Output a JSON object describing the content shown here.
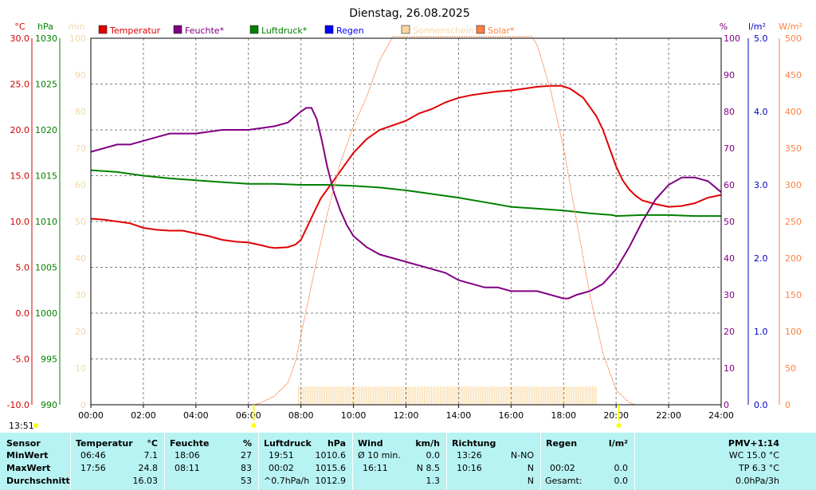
{
  "chart_data": {
    "type": "line",
    "title": "Dienstag, 26.08.2025",
    "x_ticks": [
      "00:00",
      "02:00",
      "04:00",
      "06:00",
      "08:00",
      "10:00",
      "12:00",
      "14:00",
      "16:00",
      "18:00",
      "20:00",
      "22:00",
      "24:00"
    ],
    "x_range_hours": [
      0,
      24
    ],
    "y_axes": {
      "temp": {
        "unit": "°C",
        "color": "#d00000",
        "range": [
          -10,
          30
        ],
        "ticks": [
          "30.0",
          "25.0",
          "20.0",
          "15.0",
          "10.0",
          "5.0",
          "0.0",
          "-5.0",
          "-10.0"
        ]
      },
      "hpa": {
        "unit": "hPa",
        "color": "#008000",
        "range": [
          990,
          1030
        ],
        "ticks": [
          "1030",
          "1025",
          "1020",
          "1015",
          "1010",
          "1005",
          "1000",
          "995",
          "990"
        ]
      },
      "min": {
        "unit": "min",
        "color": "#f0d8a8",
        "range": [
          0,
          100
        ],
        "ticks": [
          "100",
          "90",
          "80",
          "70",
          "60",
          "50",
          "40",
          "30",
          "20",
          "10",
          "0"
        ]
      },
      "pct": {
        "unit": "%",
        "color": "#800080",
        "range": [
          0,
          100
        ],
        "ticks": [
          "100",
          "90",
          "80",
          "70",
          "60",
          "50",
          "40",
          "30",
          "20",
          "10",
          "0"
        ]
      },
      "rain": {
        "unit": "l/m²",
        "color": "#0000c0",
        "range": [
          0,
          5
        ],
        "ticks": [
          "5.0",
          "4.0",
          "3.0",
          "2.0",
          "1.0",
          "0.0"
        ]
      },
      "solar": {
        "unit": "W/m²",
        "color": "#ff8040",
        "range": [
          0,
          500
        ],
        "ticks": [
          "500",
          "450",
          "400",
          "350",
          "300",
          "250",
          "200",
          "150",
          "100",
          "50",
          "0"
        ]
      }
    },
    "legend": [
      {
        "label": "Temperatur",
        "color": "#e00000"
      },
      {
        "label": "Feuchte*",
        "color": "#800080"
      },
      {
        "label": "Luftdruck*",
        "color": "#008000"
      },
      {
        "label": "Regen",
        "color": "#0000ff"
      },
      {
        "label": "Sonnenschein",
        "color": "#f8d8a0"
      },
      {
        "label": "Solar*",
        "color": "#ff8040"
      }
    ],
    "series": [
      {
        "name": "Temperatur",
        "axis": "temp",
        "color": "#e00000",
        "x": [
          0,
          0.5,
          1,
          1.5,
          2,
          2.5,
          3,
          3.5,
          4,
          4.5,
          5,
          5.5,
          6,
          6.5,
          6.77,
          7,
          7.5,
          7.8,
          8,
          8.25,
          8.5,
          8.75,
          9,
          9.25,
          9.5,
          9.75,
          10,
          10.5,
          11,
          11.5,
          12,
          12.5,
          13,
          13.5,
          14,
          14.5,
          15,
          15.5,
          16,
          16.5,
          17,
          17.5,
          17.93,
          18.25,
          18.5,
          18.75,
          19,
          19.25,
          19.5,
          19.75,
          20,
          20.25,
          20.5,
          20.75,
          21,
          21.5,
          22,
          22.5,
          23,
          23.5,
          24
        ],
        "y": [
          10.3,
          10.2,
          10.0,
          9.8,
          9.3,
          9.1,
          9.0,
          9.0,
          8.7,
          8.4,
          8.0,
          7.8,
          7.7,
          7.4,
          7.2,
          7.1,
          7.2,
          7.5,
          8.0,
          9.5,
          11.0,
          12.5,
          13.5,
          14.5,
          15.5,
          16.5,
          17.5,
          19.0,
          20.0,
          20.5,
          21.0,
          21.8,
          22.3,
          23.0,
          23.5,
          23.8,
          24.0,
          24.2,
          24.3,
          24.5,
          24.7,
          24.8,
          24.8,
          24.5,
          24.0,
          23.5,
          22.5,
          21.5,
          20.0,
          18.0,
          16.0,
          14.5,
          13.5,
          12.8,
          12.3,
          11.9,
          11.6,
          11.7,
          12.0,
          12.6,
          12.9
        ]
      },
      {
        "name": "Feuchte*",
        "axis": "pct",
        "color": "#800080",
        "x": [
          0,
          0.5,
          1,
          1.5,
          2,
          2.5,
          3,
          4,
          5,
          6,
          6.5,
          7,
          7.5,
          8,
          8.2,
          8.4,
          8.6,
          8.8,
          9,
          9.25,
          9.5,
          9.75,
          10,
          10.5,
          11,
          11.5,
          12,
          12.5,
          13,
          13.5,
          14,
          14.5,
          15,
          15.5,
          16,
          16.5,
          17,
          17.5,
          18,
          18.18,
          18.5,
          19,
          19.5,
          20,
          20.5,
          21,
          21.5,
          22,
          22.5,
          23,
          23.5,
          24
        ],
        "y": [
          69,
          70,
          71,
          71,
          72,
          73,
          74,
          74,
          75,
          75,
          75.5,
          76,
          77,
          80,
          81,
          81,
          78,
          72,
          65,
          58,
          53,
          49,
          46,
          43,
          41,
          40,
          39,
          38,
          37,
          36,
          34,
          33,
          32,
          32,
          31,
          31,
          31,
          30,
          29,
          29,
          30,
          31,
          33,
          37,
          43,
          50,
          56,
          60,
          62,
          62,
          61,
          58
        ]
      },
      {
        "name": "Luftdruck*",
        "axis": "hpa",
        "color": "#008000",
        "x": [
          0,
          1,
          2,
          3,
          4,
          5,
          6,
          7,
          8,
          9,
          10,
          11,
          12,
          13,
          14,
          15,
          16,
          17,
          18,
          19,
          19.85,
          20,
          21,
          22,
          23,
          24
        ],
        "y": [
          1015.6,
          1015.4,
          1015.0,
          1014.7,
          1014.5,
          1014.3,
          1014.1,
          1014.1,
          1014.0,
          1014.0,
          1013.9,
          1013.7,
          1013.4,
          1013.0,
          1012.6,
          1012.1,
          1011.6,
          1011.4,
          1011.2,
          1010.9,
          1010.7,
          1010.6,
          1010.7,
          1010.7,
          1010.6,
          1010.6
        ]
      },
      {
        "name": "Solar*",
        "axis": "solar",
        "color": "#ff8040",
        "x": [
          6.2,
          6.5,
          7,
          7.5,
          7.8,
          8,
          8.5,
          9,
          9.5,
          10,
          10.5,
          11,
          11.5,
          16.8,
          17,
          17.5,
          18,
          18.5,
          19,
          19.5,
          20,
          20.5,
          20.75
        ],
        "y": [
          0,
          3,
          12,
          30,
          60,
          95,
          180,
          260,
          330,
          380,
          420,
          470,
          520,
          520,
          490,
          430,
          350,
          250,
          150,
          70,
          20,
          3,
          0
        ]
      }
    ],
    "sunshine_bars": {
      "axis": "min",
      "color": "#f8d8a0",
      "start_hour": 7.9,
      "end_hour": 19.3,
      "value": 5
    },
    "markers": [
      {
        "hour": 6.2,
        "label": "sunrise",
        "color": "#ffff00"
      },
      {
        "hour": 20.1,
        "label": "sunset",
        "color": "#ffff00"
      }
    ],
    "current_time": "13:51"
  },
  "stats": {
    "headers": {
      "sensor": "Sensor",
      "temp": "Temperatur",
      "temp_unit": "°C",
      "hum": "Feuchte",
      "hum_unit": "%",
      "press": "Luftdruck",
      "press_unit": "hPa",
      "wind": "Wind",
      "wind_unit": "km/h",
      "dir": "Richtung",
      "rain": "Regen",
      "rain_unit": "l/m²",
      "pmv": "PMV+1:14"
    },
    "rows": [
      {
        "label": "MinWert",
        "temp_t": "06:46",
        "temp_v": "7.1",
        "hum_t": "18:06",
        "hum_v": "27",
        "press_t": "19:51",
        "press_v": "1010.6",
        "wind_t": "Ø 10 min.",
        "wind_v": "0.0",
        "dir_t": "13:26",
        "dir_v": "N-NO",
        "rain_t": "",
        "rain_v": "",
        "pmv": "WC 15.0 °C"
      },
      {
        "label": "MaxWert",
        "temp_t": "17:56",
        "temp_v": "24.8",
        "hum_t": "08:11",
        "hum_v": "83",
        "press_t": "00:02",
        "press_v": "1015.6",
        "wind_t": "16:11",
        "wind_v": "N 8.5",
        "dir_t": "10:16",
        "dir_v": "N",
        "rain_t": "00:02",
        "rain_v": "0.0",
        "pmv": "TP 6.3 °C"
      },
      {
        "label": "Durchschnitt",
        "temp_t": "",
        "temp_v": "16.03",
        "hum_t": "",
        "hum_v": "53",
        "press_t": "^0.7hPa/h",
        "press_v": "1012.9",
        "wind_t": "",
        "wind_v": "1.3",
        "dir_t": "",
        "dir_v": "N",
        "rain_t": "Gesamt:",
        "rain_v": "0.0",
        "pmv": "0.0hPa/3h"
      }
    ]
  }
}
